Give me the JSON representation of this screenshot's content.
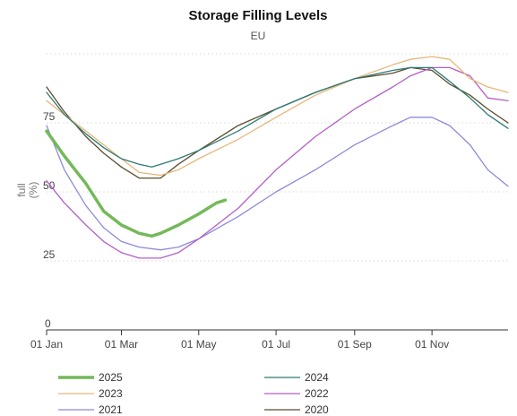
{
  "chart_data": {
    "type": "line",
    "title": "Storage Filling Levels",
    "subtitle": "EU",
    "ylabel": "full\n(%)",
    "ylim": [
      0,
      100
    ],
    "yticks": [
      0,
      25,
      50,
      75
    ],
    "xlim": [
      "01 Jan",
      "31 Dec"
    ],
    "xticks": [
      "01 Jan",
      "01 Mar",
      "01 May",
      "01 Jul",
      "01 Sep",
      "01 Nov"
    ],
    "grid": "horizontal dotted",
    "legend_position": "bottom",
    "series": [
      {
        "name": "2025",
        "color": "#74b95a",
        "width": 3.5,
        "x": [
          "01 Jan",
          "15 Jan",
          "01 Feb",
          "15 Feb",
          "01 Mar",
          "15 Mar",
          "25 Mar",
          "01 Apr",
          "15 Apr",
          "01 May",
          "15 May",
          "22 May"
        ],
        "y": [
          72,
          63,
          53,
          43,
          38,
          35,
          34,
          35,
          38,
          42,
          46,
          47
        ]
      },
      {
        "name": "2024",
        "color": "#2e7a73",
        "width": 1.3,
        "x": [
          "01 Jan",
          "15 Jan",
          "01 Feb",
          "15 Feb",
          "01 Mar",
          "15 Mar",
          "25 Mar",
          "01 Apr",
          "15 Apr",
          "01 May",
          "01 Jun",
          "01 Jul",
          "01 Aug",
          "01 Sep",
          "01 Oct",
          "15 Oct",
          "01 Nov",
          "15 Nov",
          "01 Dec",
          "15 Dec",
          "31 Dec"
        ],
        "y": [
          86,
          78,
          71,
          66,
          62,
          60,
          59,
          60,
          62,
          65,
          72,
          80,
          86,
          91,
          94,
          95,
          95,
          90,
          84,
          78,
          73
        ]
      },
      {
        "name": "2023",
        "color": "#e8b679",
        "width": 1.3,
        "x": [
          "01 Jan",
          "15 Jan",
          "01 Feb",
          "15 Feb",
          "01 Mar",
          "15 Mar",
          "01 Apr",
          "15 Apr",
          "01 May",
          "01 Jun",
          "01 Jul",
          "01 Aug",
          "01 Sep",
          "01 Oct",
          "15 Oct",
          "01 Nov",
          "15 Nov",
          "01 Dec",
          "15 Dec",
          "31 Dec"
        ],
        "y": [
          83,
          78,
          72,
          67,
          62,
          57,
          56,
          58,
          62,
          69,
          77,
          85,
          91,
          96,
          98,
          99,
          98,
          91,
          88,
          86
        ]
      },
      {
        "name": "2022",
        "color": "#b35fc9",
        "width": 1.3,
        "x": [
          "01 Jan",
          "15 Jan",
          "01 Feb",
          "15 Feb",
          "01 Mar",
          "15 Mar",
          "01 Apr",
          "15 Apr",
          "01 May",
          "01 Jun",
          "01 Jul",
          "01 Aug",
          "01 Sep",
          "01 Oct",
          "15 Oct",
          "01 Nov",
          "15 Nov",
          "01 Dec",
          "15 Dec",
          "31 Dec"
        ],
        "y": [
          54,
          46,
          38,
          32,
          28,
          26,
          26,
          28,
          33,
          44,
          58,
          70,
          80,
          88,
          92,
          95,
          95,
          92,
          84,
          83
        ]
      },
      {
        "name": "2021",
        "color": "#8b8bdb",
        "width": 1.3,
        "x": [
          "01 Jan",
          "15 Jan",
          "01 Feb",
          "15 Feb",
          "01 Mar",
          "15 Mar",
          "01 Apr",
          "15 Apr",
          "01 May",
          "01 Jun",
          "01 Jul",
          "01 Aug",
          "01 Sep",
          "01 Oct",
          "15 Oct",
          "01 Nov",
          "15 Nov",
          "01 Dec",
          "15 Dec",
          "31 Dec"
        ],
        "y": [
          74,
          58,
          45,
          37,
          32,
          30,
          29,
          30,
          33,
          41,
          50,
          58,
          67,
          74,
          77,
          77,
          74,
          67,
          58,
          52
        ]
      },
      {
        "name": "2020",
        "color": "#5a4e2e",
        "width": 1.3,
        "x": [
          "01 Jan",
          "15 Jan",
          "01 Feb",
          "15 Feb",
          "01 Mar",
          "15 Mar",
          "01 Apr",
          "15 Apr",
          "01 May",
          "01 Jun",
          "01 Jul",
          "01 Aug",
          "01 Sep",
          "01 Oct",
          "15 Oct",
          "01 Nov",
          "15 Nov",
          "01 Dec",
          "15 Dec",
          "31 Dec"
        ],
        "y": [
          88,
          79,
          70,
          64,
          59,
          55,
          55,
          60,
          65,
          74,
          80,
          86,
          91,
          93,
          95,
          94,
          89,
          85,
          80,
          75
        ]
      }
    ]
  }
}
